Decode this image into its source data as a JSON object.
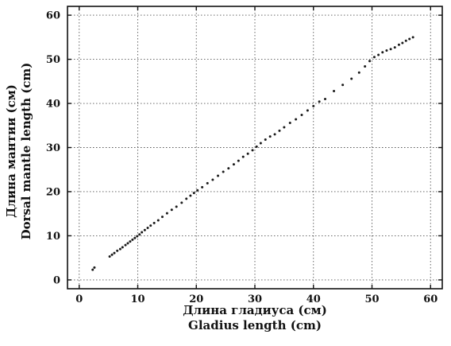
{
  "chart_data": {
    "type": "scatter",
    "title": "",
    "xlabel": [
      "Длина гладиуса (см)",
      "Gladius length (cm)"
    ],
    "ylabel": [
      "Длина мантии (см)",
      "Dorsal mantle length (cm)"
    ],
    "xlim": [
      -2,
      62
    ],
    "ylim": [
      -2,
      62
    ],
    "xticks": [
      0,
      10,
      20,
      30,
      40,
      50,
      60
    ],
    "yticks": [
      0,
      10,
      20,
      30,
      40,
      50,
      60
    ],
    "grid": true,
    "legend": "none",
    "x": [
      2.3,
      2.6,
      5.2,
      5.6,
      6.0,
      6.5,
      7.0,
      7.4,
      7.9,
      8.3,
      8.7,
      9.1,
      9.5,
      9.9,
      10.3,
      10.7,
      11.2,
      11.7,
      12.2,
      12.8,
      13.5,
      14.2,
      15.0,
      15.8,
      16.6,
      17.5,
      18.3,
      19.0,
      19.6,
      20.2,
      21.0,
      21.9,
      22.8,
      23.7,
      24.6,
      25.5,
      26.4,
      27.2,
      28.0,
      28.8,
      29.6,
      30.3,
      31.0,
      31.8,
      32.6,
      33.4,
      34.2,
      35.0,
      36.0,
      37.0,
      38.0,
      39.0,
      40.0,
      41.0,
      42.0,
      43.5,
      45.0,
      46.5,
      47.8,
      48.8,
      49.6,
      50.4,
      51.1,
      51.8,
      52.5,
      53.2,
      53.9,
      54.6,
      55.2,
      55.8,
      56.4,
      57.0
    ],
    "y": [
      2.3,
      2.8,
      5.3,
      5.7,
      6.1,
      6.6,
      7.0,
      7.4,
      7.9,
      8.3,
      8.7,
      9.1,
      9.5,
      9.9,
      10.3,
      10.8,
      11.3,
      11.8,
      12.3,
      12.9,
      13.5,
      14.3,
      15.1,
      15.9,
      16.6,
      17.5,
      18.4,
      19.1,
      19.7,
      20.3,
      21.0,
      21.9,
      22.7,
      23.6,
      24.5,
      25.3,
      26.2,
      27.0,
      27.9,
      28.6,
      29.4,
      30.2,
      31.0,
      31.8,
      32.5,
      33.0,
      33.8,
      34.6,
      35.6,
      36.4,
      37.4,
      38.4,
      39.4,
      40.4,
      41.0,
      42.8,
      44.2,
      45.6,
      47.0,
      48.4,
      49.6,
      50.5,
      51.0,
      51.6,
      52.0,
      52.3,
      52.7,
      53.3,
      53.7,
      54.2,
      54.6,
      55.0
    ]
  }
}
